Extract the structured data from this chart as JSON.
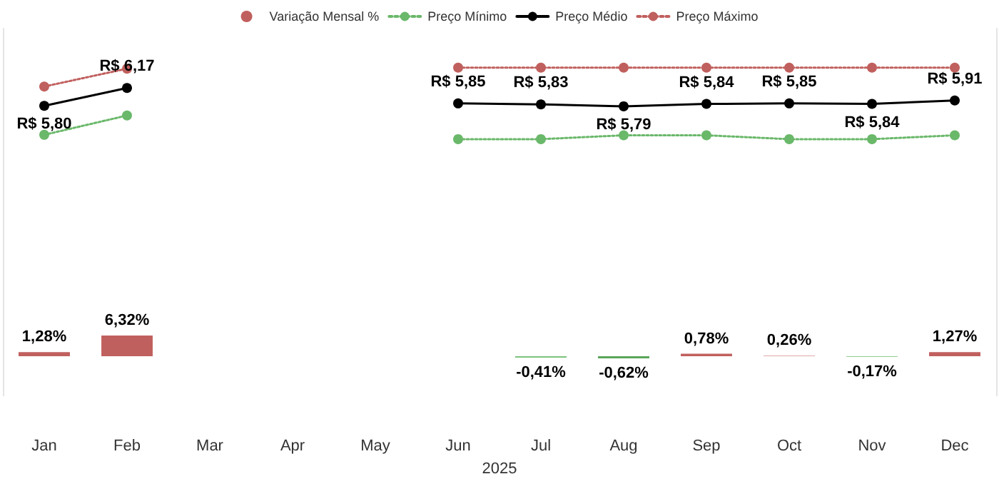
{
  "chart_data": {
    "type": "bar",
    "categories": [
      "Jan",
      "Feb",
      "Mar",
      "Apr",
      "May",
      "Jun",
      "Jul",
      "Aug",
      "Sep",
      "Oct",
      "Nov",
      "Dec"
    ],
    "xlabel": "2025",
    "legend": "top",
    "grid": false,
    "tick_labels": "x",
    "ylim": [
      -12,
      100
    ],
    "y2lim": [
      -0.2,
      7.4
    ],
    "series": [
      {
        "name": "Variação Mensal %",
        "color": "#c0605e",
        "colors": [
          "#c0605e",
          "#c0605e",
          null,
          null,
          null,
          null,
          "#7cc27c",
          "#5aa55a",
          "#c0605e",
          "#e0a8a8",
          "#8fcf8f",
          "#c0605e"
        ],
        "values": [
          1.28,
          6.32,
          null,
          null,
          null,
          null,
          -0.41,
          -0.62,
          0.78,
          0.26,
          -0.17,
          1.27
        ],
        "value_labels": [
          "1,28%",
          "6,32%",
          null,
          null,
          null,
          null,
          "-0,41%",
          "-0,62%",
          "0,78%",
          "0,26%",
          "-0,17%",
          "1,27%"
        ]
      },
      {
        "name": "Preço Mínimo",
        "type": "line",
        "axis": "y2",
        "color": "#6ab86a",
        "line_style": "dotted",
        "marker": "circle",
        "values": [
          5.2,
          5.6,
          null,
          null,
          null,
          5.11,
          5.11,
          5.19,
          5.19,
          5.11,
          5.11,
          5.19
        ]
      },
      {
        "name": "Preço Médio",
        "type": "line",
        "axis": "y2",
        "color": "#000000",
        "line_style": "solid",
        "marker": "circle",
        "values": [
          5.8,
          6.17,
          null,
          null,
          null,
          5.85,
          5.83,
          5.79,
          5.84,
          5.85,
          5.84,
          5.91
        ],
        "value_labels": [
          "R$ 5,80",
          "R$ 6,17",
          null,
          null,
          null,
          "R$ 5,85",
          "R$ 5,83",
          "R$ 5,79",
          "R$ 5,84",
          "R$ 5,85",
          "R$ 5,84",
          "R$ 5,91"
        ]
      },
      {
        "name": "Preço Máximo",
        "type": "line",
        "axis": "y2",
        "color": "#c0605e",
        "line_style": "dotted",
        "marker": "circle",
        "values": [
          6.2,
          6.57,
          null,
          null,
          null,
          6.59,
          6.59,
          6.59,
          6.59,
          6.59,
          6.59,
          6.59
        ]
      }
    ]
  }
}
